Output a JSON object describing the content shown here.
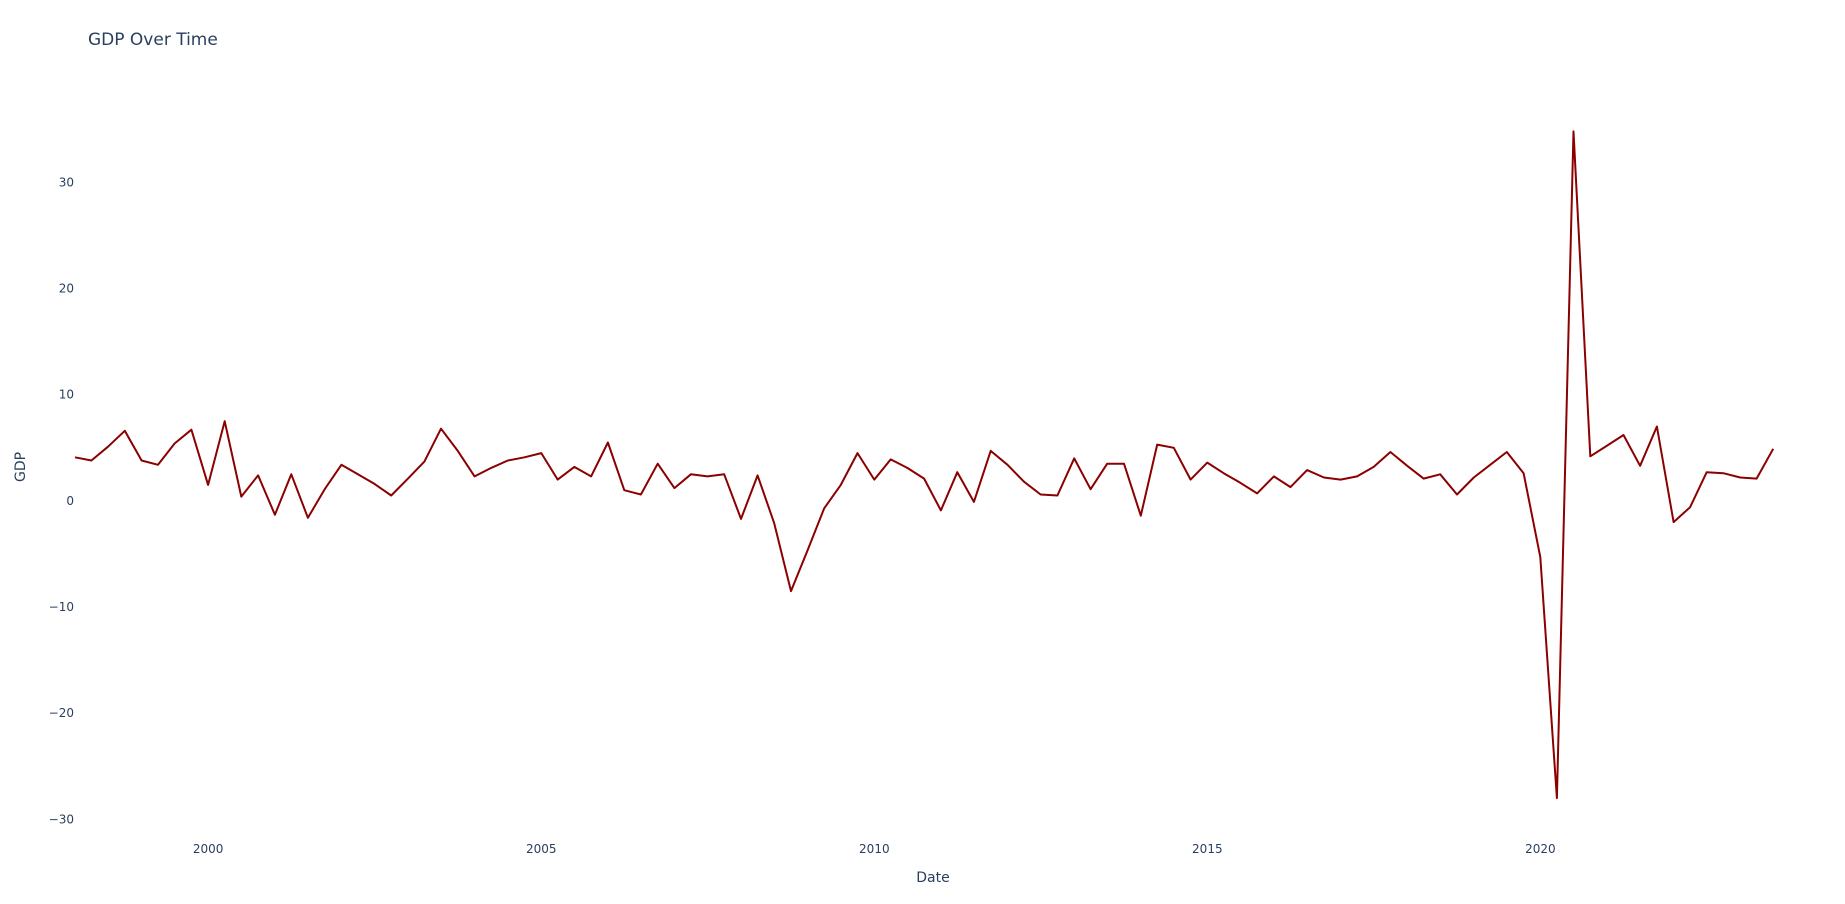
{
  "chart_data": {
    "type": "line",
    "title": "GDP Over Time",
    "xlabel": "Date",
    "ylabel": "GDP",
    "line_color": "#8b0000",
    "grid": false,
    "xlim": [
      "1998-01-01",
      "2023-10-01"
    ],
    "ylim": [
      -31,
      37
    ],
    "x_ticks": [
      "2000",
      "2005",
      "2010",
      "2015",
      "2020"
    ],
    "y_ticks": [
      "30",
      "20",
      "10",
      "0",
      "−10",
      "−20",
      "−30"
    ],
    "x": [
      "1998-01-01",
      "1998-04-01",
      "1998-07-01",
      "1998-10-01",
      "1999-01-01",
      "1999-04-01",
      "1999-07-01",
      "1999-10-01",
      "2000-01-01",
      "2000-04-01",
      "2000-07-01",
      "2000-10-01",
      "2001-01-01",
      "2001-04-01",
      "2001-07-01",
      "2001-10-01",
      "2002-01-01",
      "2002-04-01",
      "2002-07-01",
      "2002-10-01",
      "2003-01-01",
      "2003-04-01",
      "2003-07-01",
      "2003-10-01",
      "2004-01-01",
      "2004-04-01",
      "2004-07-01",
      "2004-10-01",
      "2005-01-01",
      "2005-04-01",
      "2005-07-01",
      "2005-10-01",
      "2006-01-01",
      "2006-04-01",
      "2006-07-01",
      "2006-10-01",
      "2007-01-01",
      "2007-04-01",
      "2007-07-01",
      "2007-10-01",
      "2008-01-01",
      "2008-04-01",
      "2008-07-01",
      "2008-10-01",
      "2009-01-01",
      "2009-04-01",
      "2009-07-01",
      "2009-10-01",
      "2010-01-01",
      "2010-04-01",
      "2010-07-01",
      "2010-10-01",
      "2011-01-01",
      "2011-04-01",
      "2011-07-01",
      "2011-10-01",
      "2012-01-01",
      "2012-04-01",
      "2012-07-01",
      "2012-10-01",
      "2013-01-01",
      "2013-04-01",
      "2013-07-01",
      "2013-10-01",
      "2014-01-01",
      "2014-04-01",
      "2014-07-01",
      "2014-10-01",
      "2015-01-01",
      "2015-04-01",
      "2015-07-01",
      "2015-10-01",
      "2016-01-01",
      "2016-04-01",
      "2016-07-01",
      "2016-10-01",
      "2017-01-01",
      "2017-04-01",
      "2017-07-01",
      "2017-10-01",
      "2018-01-01",
      "2018-04-01",
      "2018-07-01",
      "2018-10-01",
      "2019-01-01",
      "2019-04-01",
      "2019-07-01",
      "2019-10-01",
      "2020-01-01",
      "2020-04-01",
      "2020-07-01",
      "2020-10-01",
      "2021-01-01",
      "2021-04-01",
      "2021-07-01",
      "2021-10-01",
      "2022-01-01",
      "2022-04-01",
      "2022-07-01",
      "2022-10-01",
      "2023-01-01",
      "2023-04-01",
      "2023-07-01"
    ],
    "series": [
      {
        "values": [
          4.1,
          3.8,
          5.1,
          6.6,
          3.8,
          3.4,
          5.4,
          6.7,
          1.5,
          7.5,
          0.4,
          2.4,
          -1.3,
          2.5,
          -1.6,
          1.1,
          3.4,
          2.5,
          1.6,
          0.5,
          2.1,
          3.7,
          6.8,
          4.7,
          2.3,
          3.1,
          3.8,
          4.1,
          4.5,
          2.0,
          3.2,
          2.3,
          5.5,
          1.0,
          0.6,
          3.5,
          1.2,
          2.5,
          2.3,
          2.5,
          -1.7,
          2.4,
          -2.1,
          -8.5,
          -4.6,
          -0.7,
          1.5,
          4.5,
          2.0,
          3.9,
          3.1,
          2.1,
          -0.9,
          2.7,
          -0.1,
          4.7,
          3.4,
          1.8,
          0.6,
          0.5,
          4.0,
          1.1,
          3.5,
          3.5,
          -1.4,
          5.3,
          5.0,
          2.0,
          3.6,
          2.6,
          1.7,
          0.7,
          2.3,
          1.3,
          2.9,
          2.2,
          2.0,
          2.3,
          3.2,
          4.6,
          3.3,
          2.1,
          2.5,
          0.6,
          2.2,
          3.4,
          4.6,
          2.6,
          -5.3,
          -28.0,
          34.8,
          4.2,
          5.2,
          6.2,
          3.3,
          7.0,
          -2.0,
          -0.6,
          2.7,
          2.6,
          2.2,
          2.1,
          4.9
        ]
      }
    ]
  }
}
